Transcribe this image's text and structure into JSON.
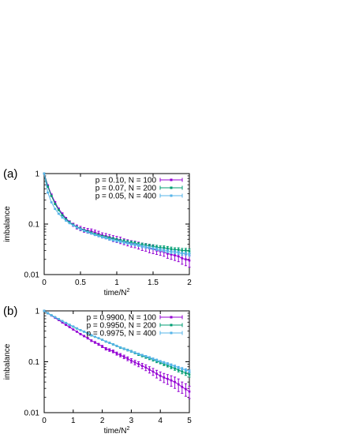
{
  "chart_data": [
    {
      "type": "line",
      "panel_label": "(a)",
      "xlabel": "time/N",
      "xlabel_sup": "2",
      "ylabel": "imbalance",
      "xlim": [
        0,
        2
      ],
      "ylim": [
        0.01,
        1
      ],
      "yscale": "log",
      "xticks": [
        0,
        0.5,
        1,
        1.5,
        2
      ],
      "xtick_labels": [
        "0",
        "0.5",
        "1",
        "1.5",
        "2"
      ],
      "yticks": [
        0.01,
        0.1,
        1
      ],
      "ytick_labels": [
        "0.01",
        "0.1",
        "1"
      ],
      "legend_position": "top-right",
      "series": [
        {
          "name": "p = 0.10, N = 100",
          "color": "#9400d3",
          "x": [
            0,
            0.05,
            0.1,
            0.15,
            0.2,
            0.25,
            0.3,
            0.35,
            0.4,
            0.45,
            0.5,
            0.55,
            0.6,
            0.65,
            0.7,
            0.75,
            0.8,
            0.85,
            0.9,
            0.95,
            1.0,
            1.05,
            1.1,
            1.15,
            1.2,
            1.25,
            1.3,
            1.35,
            1.4,
            1.45,
            1.5,
            1.55,
            1.6,
            1.65,
            1.7,
            1.75,
            1.8,
            1.85,
            1.9,
            1.95,
            2.0
          ],
          "y": [
            1,
            0.58,
            0.38,
            0.27,
            0.2,
            0.16,
            0.13,
            0.11,
            0.097,
            0.088,
            0.082,
            0.077,
            0.074,
            0.072,
            0.068,
            0.064,
            0.06,
            0.058,
            0.055,
            0.052,
            0.05,
            0.048,
            0.045,
            0.043,
            0.041,
            0.04,
            0.038,
            0.036,
            0.035,
            0.033,
            0.032,
            0.03,
            0.029,
            0.028,
            0.026,
            0.025,
            0.024,
            0.023,
            0.021,
            0.02,
            0.019
          ],
          "err": [
            0,
            0.02,
            0.015,
            0.01,
            0.008,
            0.007,
            0.006,
            0.006,
            0.007,
            0.008,
            0.008,
            0.008,
            0.008,
            0.008,
            0.008,
            0.008,
            0.007,
            0.007,
            0.007,
            0.007,
            0.007,
            0.007,
            0.006,
            0.006,
            0.006,
            0.006,
            0.006,
            0.006,
            0.006,
            0.006,
            0.006,
            0.005,
            0.005,
            0.005,
            0.005,
            0.005,
            0.005,
            0.005,
            0.005,
            0.005,
            0.005
          ]
        },
        {
          "name": "p = 0.07, N = 200",
          "color": "#009e73",
          "x": [
            0,
            0.05,
            0.1,
            0.15,
            0.2,
            0.25,
            0.3,
            0.35,
            0.4,
            0.45,
            0.5,
            0.55,
            0.6,
            0.65,
            0.7,
            0.75,
            0.8,
            0.85,
            0.9,
            0.95,
            1.0,
            1.05,
            1.1,
            1.15,
            1.2,
            1.25,
            1.3,
            1.35,
            1.4,
            1.45,
            1.5,
            1.55,
            1.6,
            1.65,
            1.7,
            1.75,
            1.8,
            1.85,
            1.9,
            1.95,
            2.0
          ],
          "y": [
            1,
            0.55,
            0.36,
            0.25,
            0.19,
            0.15,
            0.125,
            0.108,
            0.096,
            0.087,
            0.08,
            0.075,
            0.071,
            0.067,
            0.063,
            0.06,
            0.057,
            0.055,
            0.053,
            0.051,
            0.049,
            0.047,
            0.046,
            0.044,
            0.043,
            0.042,
            0.04,
            0.039,
            0.038,
            0.037,
            0.036,
            0.035,
            0.034,
            0.034,
            0.033,
            0.032,
            0.031,
            0.031,
            0.03,
            0.03,
            0.029
          ],
          "err": [
            0,
            0.012,
            0.008,
            0.006,
            0.005,
            0.004,
            0.004,
            0.004,
            0.004,
            0.004,
            0.004,
            0.004,
            0.003,
            0.003,
            0.003,
            0.003,
            0.003,
            0.003,
            0.003,
            0.003,
            0.003,
            0.003,
            0.003,
            0.003,
            0.003,
            0.003,
            0.003,
            0.003,
            0.003,
            0.003,
            0.003,
            0.003,
            0.003,
            0.003,
            0.003,
            0.003,
            0.003,
            0.003,
            0.003,
            0.003,
            0.003
          ]
        },
        {
          "name": "p = 0.05, N = 400",
          "color": "#56b4e9",
          "x": [
            0,
            0.05,
            0.1,
            0.15,
            0.2,
            0.25,
            0.3,
            0.35,
            0.4,
            0.45,
            0.5,
            0.55,
            0.6,
            0.65,
            0.7,
            0.75,
            0.8,
            0.85,
            0.9,
            0.95,
            1.0,
            1.05,
            1.1,
            1.15,
            1.2,
            1.25,
            1.3,
            1.35,
            1.4,
            1.45,
            1.5,
            1.55,
            1.6,
            1.65,
            1.7,
            1.75,
            1.8,
            1.85,
            1.9,
            1.95,
            2.0
          ],
          "y": [
            1,
            0.42,
            0.27,
            0.2,
            0.16,
            0.135,
            0.117,
            0.104,
            0.094,
            0.086,
            0.079,
            0.074,
            0.069,
            0.065,
            0.061,
            0.058,
            0.055,
            0.053,
            0.05,
            0.048,
            0.046,
            0.045,
            0.043,
            0.042,
            0.04,
            0.039,
            0.038,
            0.036,
            0.035,
            0.034,
            0.033,
            0.032,
            0.031,
            0.03,
            0.029,
            0.028,
            0.028,
            0.027,
            0.026,
            0.026,
            0.025
          ],
          "err": [
            0,
            0.006,
            0.004,
            0.003,
            0.003,
            0.002,
            0.002,
            0.002,
            0.002,
            0.002,
            0.002,
            0.002,
            0.002,
            0.002,
            0.002,
            0.002,
            0.002,
            0.002,
            0.002,
            0.002,
            0.002,
            0.002,
            0.002,
            0.002,
            0.002,
            0.002,
            0.002,
            0.002,
            0.002,
            0.002,
            0.002,
            0.002,
            0.002,
            0.002,
            0.002,
            0.002,
            0.002,
            0.002,
            0.002,
            0.002,
            0.002
          ]
        }
      ]
    },
    {
      "type": "line",
      "panel_label": "(b)",
      "xlabel": "time/N",
      "xlabel_sup": "2",
      "ylabel": "imbalance",
      "xlim": [
        0,
        5
      ],
      "ylim": [
        0.01,
        1
      ],
      "yscale": "log",
      "xticks": [
        0,
        1,
        2,
        3,
        4,
        5
      ],
      "xtick_labels": [
        "0",
        "1",
        "2",
        "3",
        "4",
        "5"
      ],
      "yticks": [
        0.01,
        0.1,
        1
      ],
      "ytick_labels": [
        "0.01",
        "0.1",
        "1"
      ],
      "legend_position": "top-right",
      "series": [
        {
          "name": "p = 0.9900, N = 100",
          "color": "#9400d3",
          "x": [
            0,
            0.125,
            0.25,
            0.375,
            0.5,
            0.625,
            0.75,
            0.875,
            1.0,
            1.125,
            1.25,
            1.375,
            1.5,
            1.625,
            1.75,
            1.875,
            2.0,
            2.125,
            2.25,
            2.375,
            2.5,
            2.625,
            2.75,
            2.875,
            3.0,
            3.125,
            3.25,
            3.375,
            3.5,
            3.625,
            3.75,
            3.875,
            4.0,
            4.125,
            4.25,
            4.375,
            4.5,
            4.625,
            4.75,
            4.875,
            5.0
          ],
          "y": [
            1,
            0.9,
            0.81,
            0.73,
            0.66,
            0.59,
            0.53,
            0.48,
            0.43,
            0.39,
            0.35,
            0.32,
            0.29,
            0.26,
            0.24,
            0.22,
            0.2,
            0.18,
            0.17,
            0.16,
            0.145,
            0.135,
            0.125,
            0.115,
            0.105,
            0.097,
            0.09,
            0.083,
            0.077,
            0.07,
            0.064,
            0.058,
            0.053,
            0.049,
            0.046,
            0.043,
            0.04,
            0.036,
            0.032,
            0.029,
            0.026
          ],
          "err": [
            0,
            0.01,
            0.01,
            0.01,
            0.01,
            0.01,
            0.01,
            0.01,
            0.01,
            0.01,
            0.01,
            0.01,
            0.01,
            0.01,
            0.01,
            0.01,
            0.01,
            0.01,
            0.01,
            0.01,
            0.01,
            0.01,
            0.01,
            0.01,
            0.01,
            0.01,
            0.01,
            0.01,
            0.01,
            0.01,
            0.01,
            0.01,
            0.01,
            0.01,
            0.01,
            0.01,
            0.01,
            0.01,
            0.008,
            0.008,
            0.007
          ]
        },
        {
          "name": "p = 0.9950, N = 200",
          "color": "#009e73",
          "x": [
            0,
            0.125,
            0.25,
            0.375,
            0.5,
            0.625,
            0.75,
            0.875,
            1.0,
            1.125,
            1.25,
            1.375,
            1.5,
            1.625,
            1.75,
            1.875,
            2.0,
            2.125,
            2.25,
            2.375,
            2.5,
            2.625,
            2.75,
            2.875,
            3.0,
            3.125,
            3.25,
            3.375,
            3.5,
            3.625,
            3.75,
            3.875,
            4.0,
            4.125,
            4.25,
            4.375,
            4.5,
            4.625,
            4.75,
            4.875,
            5.0
          ],
          "y": [
            1,
            0.9,
            0.82,
            0.75,
            0.69,
            0.63,
            0.58,
            0.53,
            0.49,
            0.45,
            0.42,
            0.39,
            0.36,
            0.33,
            0.31,
            0.29,
            0.27,
            0.25,
            0.235,
            0.22,
            0.205,
            0.19,
            0.18,
            0.17,
            0.16,
            0.15,
            0.14,
            0.132,
            0.124,
            0.117,
            0.11,
            0.103,
            0.097,
            0.09,
            0.085,
            0.079,
            0.074,
            0.069,
            0.064,
            0.06,
            0.056
          ],
          "err": [
            0,
            0.007,
            0.007,
            0.007,
            0.007,
            0.007,
            0.007,
            0.007,
            0.007,
            0.007,
            0.007,
            0.007,
            0.007,
            0.007,
            0.007,
            0.007,
            0.007,
            0.007,
            0.007,
            0.007,
            0.007,
            0.007,
            0.007,
            0.007,
            0.007,
            0.007,
            0.007,
            0.007,
            0.007,
            0.007,
            0.007,
            0.007,
            0.006,
            0.006,
            0.006,
            0.006,
            0.006,
            0.006,
            0.006,
            0.006,
            0.006
          ]
        },
        {
          "name": "p = 0.9975, N = 400",
          "color": "#56b4e9",
          "x": [
            0,
            0.125,
            0.25,
            0.375,
            0.5,
            0.625,
            0.75,
            0.875,
            1.0,
            1.125,
            1.25,
            1.375,
            1.5,
            1.625,
            1.75,
            1.875,
            2.0,
            2.125,
            2.25,
            2.375,
            2.5,
            2.625,
            2.75,
            2.875,
            3.0,
            3.125,
            3.25,
            3.375,
            3.5,
            3.625,
            3.75,
            3.875,
            4.0,
            4.125,
            4.25,
            4.375,
            4.5,
            4.625,
            4.75,
            4.875,
            5.0
          ],
          "y": [
            1,
            0.9,
            0.82,
            0.75,
            0.69,
            0.63,
            0.58,
            0.535,
            0.495,
            0.455,
            0.42,
            0.39,
            0.36,
            0.335,
            0.31,
            0.29,
            0.27,
            0.25,
            0.235,
            0.22,
            0.205,
            0.192,
            0.18,
            0.17,
            0.16,
            0.151,
            0.143,
            0.135,
            0.128,
            0.121,
            0.114,
            0.108,
            0.102,
            0.097,
            0.092,
            0.087,
            0.082,
            0.077,
            0.073,
            0.069,
            0.065
          ],
          "err": [
            0,
            0.005,
            0.005,
            0.005,
            0.005,
            0.005,
            0.005,
            0.005,
            0.005,
            0.005,
            0.005,
            0.005,
            0.005,
            0.005,
            0.005,
            0.005,
            0.005,
            0.005,
            0.005,
            0.005,
            0.005,
            0.005,
            0.005,
            0.005,
            0.005,
            0.005,
            0.005,
            0.005,
            0.005,
            0.005,
            0.005,
            0.005,
            0.004,
            0.004,
            0.004,
            0.004,
            0.004,
            0.004,
            0.004,
            0.004,
            0.004
          ]
        }
      ]
    }
  ]
}
